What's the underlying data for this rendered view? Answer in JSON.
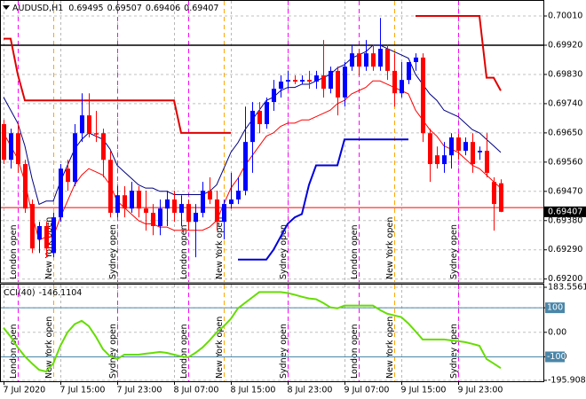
{
  "chart_data": [
    {
      "type": "candlestick",
      "title": "AUDUSD,H1",
      "categories": [
        "7 Jul 2020",
        null,
        null,
        null,
        null,
        null,
        null,
        null,
        "7 Jul 15:00",
        null,
        null,
        null,
        null,
        null,
        null,
        null,
        "7 Jul 23:00",
        null,
        null,
        null,
        null,
        null,
        null,
        null,
        "8 Jul 07:00",
        null,
        null,
        null,
        null,
        null,
        null,
        null,
        "8 Jul 15:00",
        null,
        null,
        null,
        null,
        null,
        null,
        null,
        "8 Jul 23:00",
        null,
        null,
        null,
        null,
        null,
        null,
        null,
        "9 Jul 07:00",
        null,
        null,
        null,
        null,
        null,
        null,
        null,
        "9 Jul 15:00",
        null,
        null,
        null,
        null,
        null,
        null,
        null,
        "9 Jul 23:00",
        null,
        null,
        null,
        null,
        null,
        null
      ],
      "open": [
        0.69677,
        0.69567,
        0.69649,
        0.69554,
        0.69431,
        0.69322,
        0.69363,
        0.6928,
        0.6939,
        0.6954,
        0.69499,
        0.69649,
        0.69704,
        0.69649,
        0.69649,
        0.69567,
        0.69404,
        0.69458,
        0.69417,
        0.69472,
        0.69417,
        0.69404,
        0.69363,
        0.69417,
        0.69445,
        0.69404,
        0.69431,
        0.69376,
        0.69404,
        0.69472,
        0.69445,
        0.69376,
        0.69431,
        0.69445,
        0.69472,
        0.69622,
        0.69718,
        0.69677,
        0.69745,
        0.69786,
        0.69808,
        0.69813,
        0.69808,
        0.69813,
        0.69808,
        0.69827,
        0.69786,
        0.69841,
        0.69759,
        0.69854,
        0.69895,
        0.69854,
        0.69895,
        0.69854,
        0.69909,
        0.69841,
        0.69772,
        0.69813,
        0.69868,
        0.69882,
        0.69649,
        0.69581,
        0.69554,
        0.69581,
        0.69636,
        0.69595,
        0.69622,
        0.6959,
        0.69595,
        0.69499,
        0.69495
      ],
      "high": [
        0.6969,
        0.69663,
        0.69677,
        0.69567,
        0.69445,
        0.69376,
        0.69376,
        0.69404,
        0.69554,
        0.69567,
        0.69677,
        0.69772,
        0.69772,
        0.69718,
        0.69663,
        0.69595,
        0.69486,
        0.69486,
        0.69499,
        0.69486,
        0.69472,
        0.69431,
        0.69445,
        0.69472,
        0.69472,
        0.69458,
        0.69445,
        0.69431,
        0.69499,
        0.69513,
        0.69472,
        0.69445,
        0.69527,
        0.69513,
        0.69731,
        0.69745,
        0.69745,
        0.69759,
        0.69813,
        0.69827,
        0.69841,
        0.69827,
        0.69827,
        0.69841,
        0.69841,
        0.69936,
        0.69854,
        0.69854,
        0.69868,
        0.69922,
        0.69909,
        0.69936,
        0.69922,
        0.70004,
        0.69922,
        0.69895,
        0.69868,
        0.69868,
        0.69895,
        0.69895,
        0.69663,
        0.69608,
        0.69622,
        0.69649,
        0.69649,
        0.69636,
        0.69649,
        0.69608,
        0.69649,
        0.69513,
        0.69507
      ],
      "low": [
        0.69554,
        0.6954,
        0.69527,
        0.69404,
        0.6928,
        0.6928,
        0.69267,
        0.69267,
        0.69376,
        0.69472,
        0.69486,
        0.69622,
        0.69636,
        0.69622,
        0.69513,
        0.6939,
        0.6939,
        0.6939,
        0.69404,
        0.6939,
        0.69349,
        0.69335,
        0.69335,
        0.69363,
        0.69376,
        0.69363,
        0.69349,
        0.69267,
        0.6939,
        0.69431,
        0.69349,
        0.69322,
        0.69417,
        0.69431,
        0.69458,
        0.69527,
        0.69649,
        0.69663,
        0.69718,
        0.69759,
        0.69786,
        0.698,
        0.698,
        0.69786,
        0.69786,
        0.69759,
        0.69772,
        0.69704,
        0.69731,
        0.69841,
        0.69827,
        0.69841,
        0.69841,
        0.69841,
        0.69813,
        0.69731,
        0.69759,
        0.698,
        0.69841,
        0.69622,
        0.69499,
        0.6954,
        0.69527,
        0.6954,
        0.69567,
        0.69581,
        0.69527,
        0.69567,
        0.69513,
        0.69349,
        0.69406
      ],
      "close": [
        0.69567,
        0.69649,
        0.69554,
        0.69417,
        0.69294,
        0.69363,
        0.69294,
        0.6939,
        0.6954,
        0.69499,
        0.69649,
        0.69704,
        0.69649,
        0.69645,
        0.69567,
        0.69404,
        0.69458,
        0.69417,
        0.69472,
        0.69417,
        0.69404,
        0.69363,
        0.69417,
        0.69445,
        0.69404,
        0.69431,
        0.69376,
        0.69404,
        0.69472,
        0.69445,
        0.69376,
        0.69431,
        0.69445,
        0.69472,
        0.69622,
        0.69718,
        0.69677,
        0.69745,
        0.69786,
        0.69808,
        0.69813,
        0.69808,
        0.69813,
        0.69808,
        0.69827,
        0.69786,
        0.69841,
        0.69759,
        0.69854,
        0.69895,
        0.69854,
        0.69895,
        0.69854,
        0.69909,
        0.69841,
        0.69772,
        0.69813,
        0.69868,
        0.69882,
        0.69649,
        0.69554,
        0.69554,
        0.69581,
        0.69636,
        0.69595,
        0.69622,
        0.69554,
        0.69595,
        0.69527,
        0.69431,
        0.69407
      ],
      "up_color": "#0000ff",
      "down_color": "#ff0000",
      "series": [
        {
          "color": "#000080",
          "style": "thin",
          "values": [
            0.6976,
            0.6972,
            0.6968,
            0.6961,
            0.6951,
            0.6943,
            0.6944,
            0.6944,
            0.695,
            0.6955,
            0.696,
            0.6963,
            0.6965,
            0.6964,
            0.6963,
            0.696,
            0.6955,
            0.6953,
            0.6951,
            0.6949,
            0.6948,
            0.6948,
            0.6947,
            0.6947,
            0.6946,
            0.6946,
            0.6946,
            0.6946,
            0.6946,
            0.6947,
            0.6949,
            0.6954,
            0.6959,
            0.6962,
            0.6966,
            0.6969,
            0.6972,
            0.6975,
            0.6976,
            0.6978,
            0.6979,
            0.6979,
            0.698,
            0.698,
            0.6981,
            0.6982,
            0.6983,
            0.6985,
            0.6986,
            0.6988,
            0.6989,
            0.699,
            0.6992,
            0.6992,
            0.6991,
            0.699,
            0.6989,
            0.6988,
            0.6983,
            0.698,
            0.6977,
            0.6975,
            0.6972,
            0.6971,
            0.697,
            0.6968,
            0.6966,
            0.6965,
            0.6963,
            0.6961,
            0.6959
          ]
        },
        {
          "color": "#ff0000",
          "style": "thin",
          "values": [
            0.6965,
            0.6961,
            0.6957,
            0.695,
            0.694,
            0.6932,
            0.6933,
            0.6933,
            0.6939,
            0.6944,
            0.6949,
            0.6952,
            0.6954,
            0.6953,
            0.6952,
            0.6949,
            0.6944,
            0.6942,
            0.694,
            0.6938,
            0.6937,
            0.6937,
            0.6936,
            0.6936,
            0.6935,
            0.6935,
            0.6935,
            0.6935,
            0.6935,
            0.6936,
            0.6938,
            0.6943,
            0.6948,
            0.6951,
            0.6955,
            0.6958,
            0.6961,
            0.6964,
            0.6965,
            0.6967,
            0.6968,
            0.6968,
            0.6969,
            0.6969,
            0.697,
            0.6971,
            0.6972,
            0.6974,
            0.6975,
            0.6977,
            0.6978,
            0.6979,
            0.6981,
            0.6981,
            0.698,
            0.6979,
            0.6978,
            0.6977,
            0.6972,
            0.6969,
            0.6966,
            0.6964,
            0.6961,
            0.696,
            0.6959,
            0.6957,
            0.6955,
            0.6954,
            0.6952,
            0.695,
            0.6948
          ]
        },
        {
          "color": "#e00000",
          "style": "bold",
          "values": [
            0.6994,
            0.6994,
            0.6983,
            0.6975,
            0.6975,
            0.6975,
            0.6975,
            0.6975,
            0.6975,
            0.6975,
            0.6975,
            0.6975,
            0.6975,
            0.6975,
            0.6975,
            0.6975,
            0.6975,
            0.6975,
            0.6975,
            0.6975,
            0.6975,
            0.6975,
            0.6975,
            0.6975,
            0.6975,
            0.6965,
            0.6965,
            0.6965,
            0.6965,
            0.6965,
            0.6965,
            0.6965,
            0.6965,
            null,
            null,
            null,
            null,
            null,
            null,
            null,
            null,
            null,
            null,
            null,
            null,
            null,
            null,
            null,
            null,
            null,
            null,
            null,
            null,
            null,
            null,
            null,
            null,
            null,
            0.7001,
            0.7001,
            0.7001,
            0.7001,
            0.7001,
            0.7001,
            0.7001,
            0.7001,
            0.7001,
            0.7001,
            0.6982,
            0.6982,
            0.6978
          ]
        },
        {
          "color": "#0000dd",
          "style": "bold",
          "values": [
            null,
            null,
            null,
            null,
            null,
            null,
            null,
            null,
            null,
            null,
            null,
            null,
            null,
            null,
            null,
            null,
            null,
            null,
            null,
            null,
            null,
            null,
            null,
            null,
            null,
            null,
            null,
            null,
            null,
            null,
            null,
            null,
            null,
            0.6926,
            0.6926,
            0.6926,
            0.6926,
            0.6926,
            0.6929,
            0.6933,
            0.6937,
            0.6939,
            0.694,
            0.6949,
            0.6955,
            0.6955,
            0.6955,
            0.6955,
            0.6963,
            0.6963,
            0.6963,
            0.6963,
            0.6963,
            0.6963,
            0.6963,
            0.6963,
            0.6963,
            0.6963,
            null,
            null,
            null,
            null,
            null,
            null,
            null,
            null,
            null,
            null,
            null,
            null,
            null
          ]
        }
      ],
      "hlines": [
        {
          "value": 0.6992,
          "color": "#000000"
        },
        {
          "value": 0.6942,
          "color": "#ff0000"
        }
      ],
      "sessions": [
        {
          "label": "London open",
          "index": 2,
          "color": "#ff00ff"
        },
        {
          "label": "New York open",
          "index": 7,
          "color": "#ffa500"
        },
        {
          "label": "Sydney open",
          "index": 16,
          "color": "#ff00ff"
        },
        {
          "label": "London open",
          "index": 26,
          "color": "#ff00ff"
        },
        {
          "label": "New York open",
          "index": 31,
          "color": "#ffa500"
        },
        {
          "label": "Sydney open",
          "index": 40,
          "color": "#ff00ff"
        },
        {
          "label": "London open",
          "index": 50,
          "color": "#ff00ff"
        },
        {
          "label": "New York open",
          "index": 55,
          "color": "#ffa500"
        },
        {
          "label": "Sydney open",
          "index": 64,
          "color": "#ff00ff"
        }
      ],
      "ylim": [
        0.69191,
        0.70051
      ],
      "yticks": [
        {
          "value": 0.7001,
          "label": "0.70010"
        },
        {
          "value": 0.6992,
          "label": "0.69920"
        },
        {
          "value": 0.6983,
          "label": "0.69830"
        },
        {
          "value": 0.6974,
          "label": "0.69740"
        },
        {
          "value": 0.6965,
          "label": "0.69650"
        },
        {
          "value": 0.6956,
          "label": "0.69560"
        },
        {
          "value": 0.6947,
          "label": "0.69470"
        },
        {
          "value": 0.6938,
          "label": "0.69380"
        },
        {
          "value": 0.6929,
          "label": "0.69290"
        },
        {
          "value": 0.692,
          "label": "0.69200"
        }
      ],
      "grid": true
    },
    {
      "type": "line",
      "title": "CCI(40)",
      "color": "#66dd00",
      "values": [
        18,
        -18,
        -62,
        -98,
        -127,
        -153,
        -160,
        -127,
        -55,
        0,
        33,
        47,
        25,
        -18,
        -69,
        -98,
        -109,
        -91,
        -91,
        -91,
        -87,
        -84,
        -80,
        -84,
        -91,
        -98,
        -102,
        -84,
        -62,
        -33,
        0,
        25,
        55,
        98,
        120,
        142,
        164,
        164,
        164,
        164,
        160,
        153,
        145,
        138,
        135,
        120,
        102,
        98,
        109,
        109,
        109,
        109,
        109,
        91,
        76,
        69,
        62,
        36,
        4,
        -29,
        -29,
        -29,
        -29,
        -33,
        -36,
        -40,
        -47,
        -55,
        -109,
        -127,
        -146.1104
      ],
      "levels": [
        100,
        -100
      ],
      "level_color": "#4a86a8",
      "ylim": [
        -195.9081,
        183.5561
      ],
      "yticks": [
        183.5561,
        100,
        {
          "value": 0,
          "label": "0.00"
        },
        -100,
        -195.9081
      ],
      "grid": true
    }
  ]
}
